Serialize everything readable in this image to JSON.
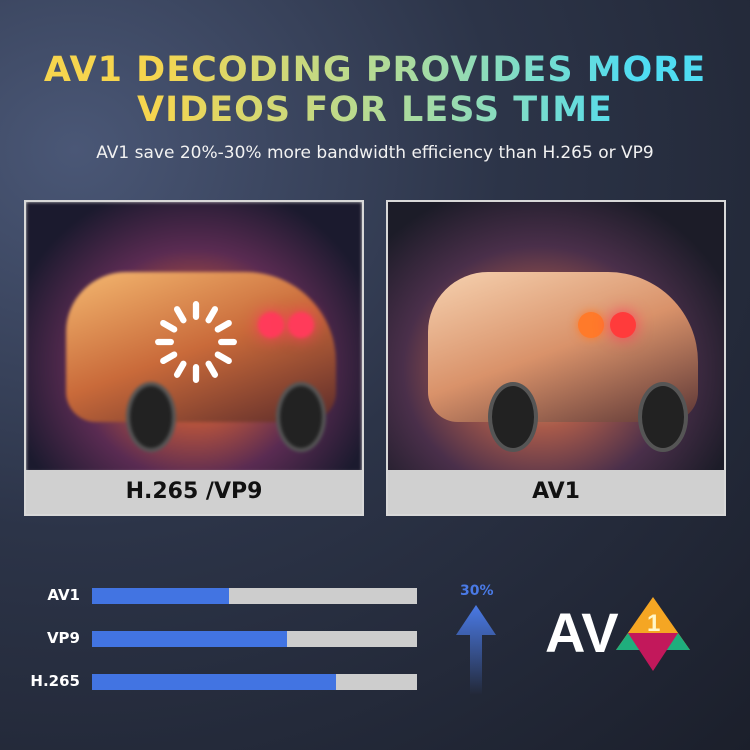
{
  "header": {
    "title": "AV1 DECODING PROVIDES MORE VIDEOS FOR LESS TIME",
    "subtitle": "AV1 save 20%-30% more bandwidth efficiency than H.265 or VP9"
  },
  "comparison": {
    "left_label": "H.265 /VP9",
    "right_label": "AV1",
    "left_icon": "loading-spinner-icon"
  },
  "chart_data": {
    "type": "bar",
    "orientation": "horizontal",
    "categories": [
      "AV1",
      "VP9",
      "H.265"
    ],
    "values": [
      0.42,
      0.6,
      0.75
    ],
    "xlim": [
      0,
      1
    ],
    "colors": {
      "fill": "#4274e2",
      "track": "#cdcdcd"
    }
  },
  "improvement": {
    "value": "30%",
    "icon": "arrow-up-icon"
  },
  "logo": {
    "text": "AV1",
    "colors": [
      "#ffffff",
      "#f5a623",
      "#1fae7d",
      "#c2185b"
    ]
  }
}
